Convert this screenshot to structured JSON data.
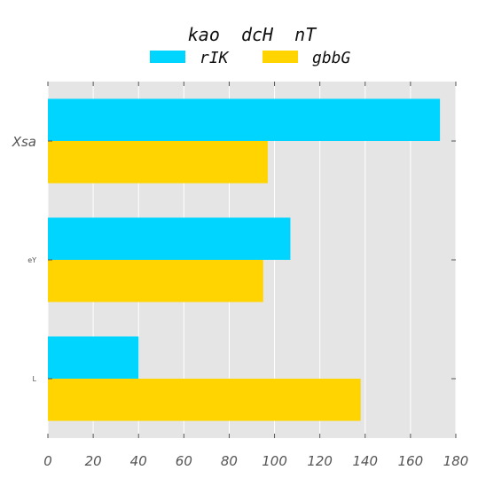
{
  "chart_data": {
    "type": "bar",
    "orientation": "horizontal",
    "title": "kao  dcH  nT",
    "categories": [
      "Xsa",
      "eY",
      "L"
    ],
    "series": [
      {
        "name": "rIK",
        "color": "#00d5ff",
        "values": [
          173,
          107,
          40
        ]
      },
      {
        "name": "gbbG",
        "color": "#ffd400",
        "values": [
          97,
          95,
          138
        ]
      }
    ],
    "xlim": [
      0,
      180
    ],
    "xticks": [
      0,
      20,
      40,
      60,
      80,
      100,
      120,
      140,
      160,
      180
    ],
    "grid": true,
    "legend_position": "top-center",
    "background": "#e5e5e5"
  }
}
